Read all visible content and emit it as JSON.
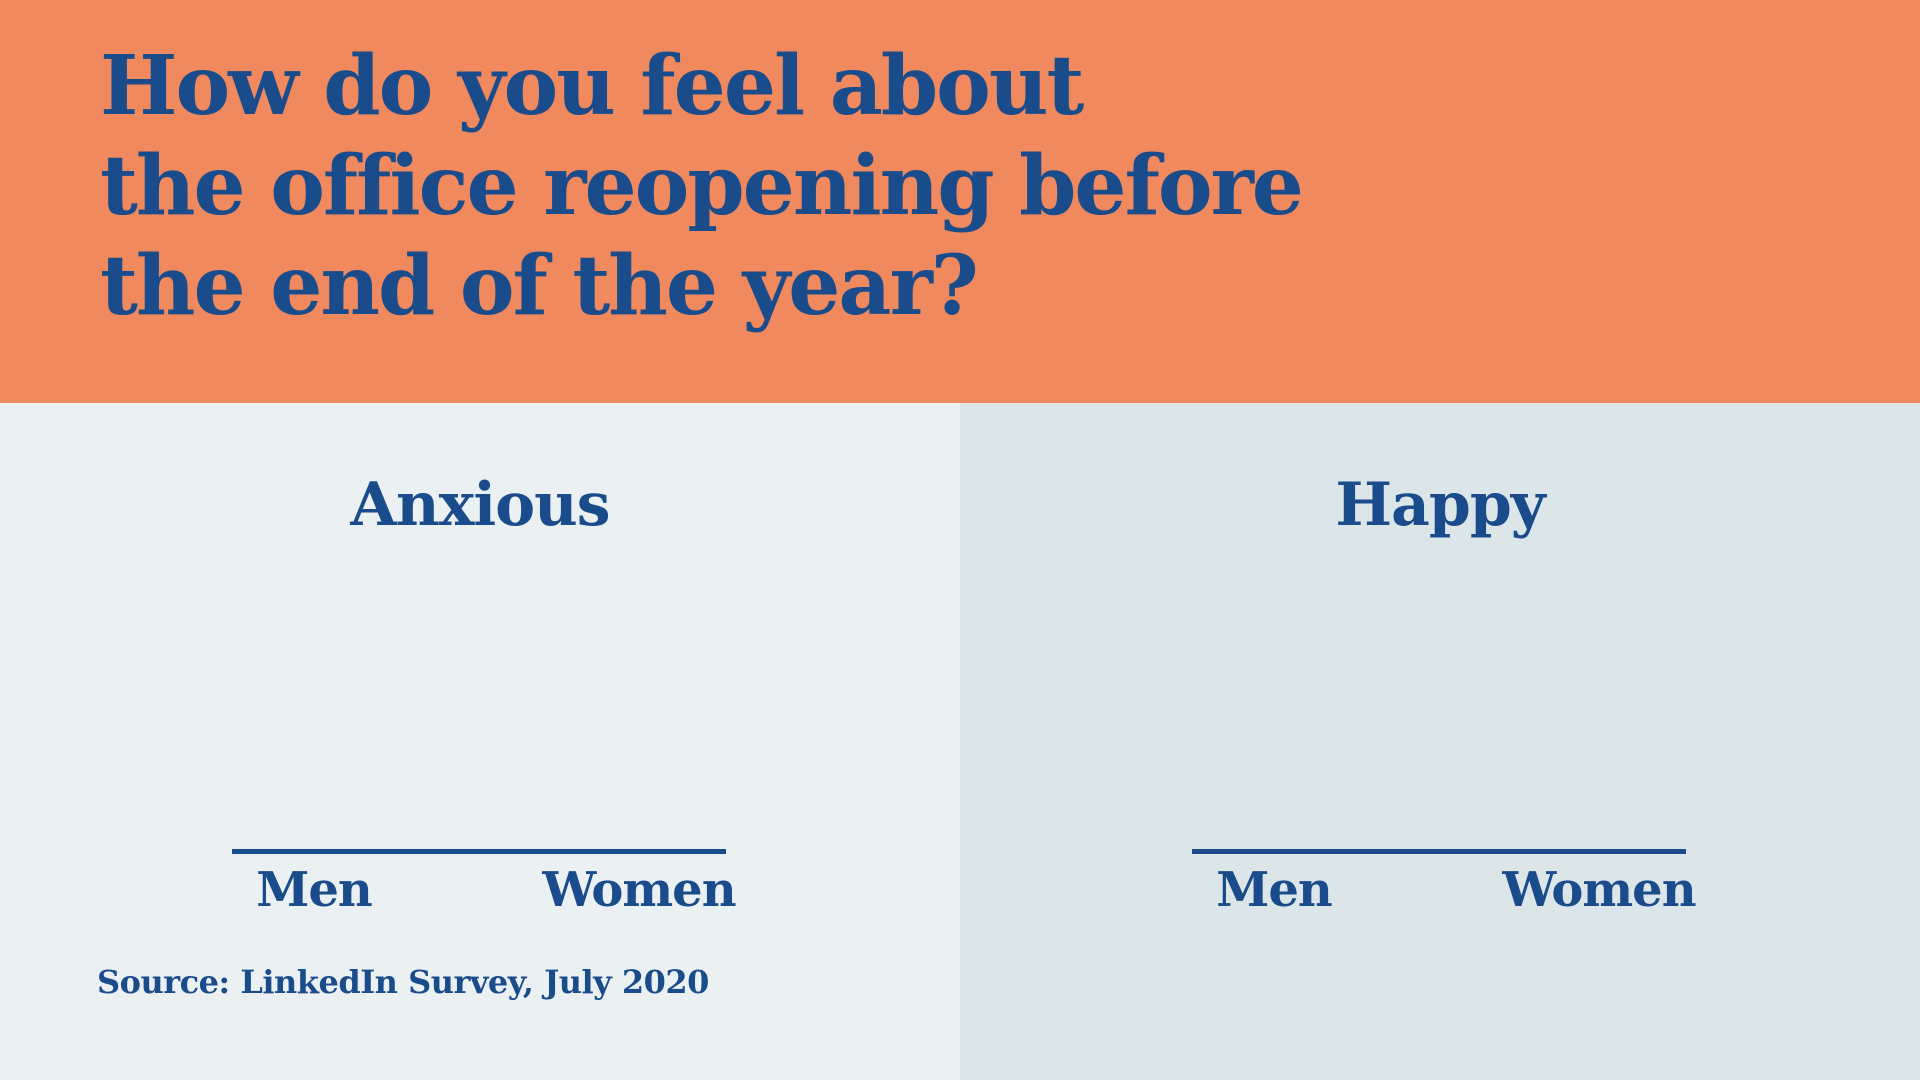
{
  "title": {
    "line1": "How do you feel about",
    "line2": "the office reopening before",
    "line3": "the end of the year?"
  },
  "panels": [
    {
      "heading": "Anxious",
      "categories": {
        "men": "Men",
        "women": "Women"
      }
    },
    {
      "heading": "Happy",
      "categories": {
        "men": "Men",
        "women": "Women"
      }
    }
  ],
  "source": "Source: LinkedIn Survey, July 2020",
  "colors": {
    "header_bg": "#F08A5E",
    "panel_left_bg": "#EBF0F3",
    "panel_right_bg": "#DCE6E9",
    "text_blue": "#1A4C8B",
    "axis_blue": "#1A4C8B"
  },
  "chart_data": [
    {
      "type": "bar",
      "title": "Anxious",
      "categories": [
        "Men",
        "Women"
      ],
      "values": [],
      "note": "no bars or numeric values are rendered in this frame; only the baseline axis and category labels are visible"
    },
    {
      "type": "bar",
      "title": "Happy",
      "categories": [
        "Men",
        "Women"
      ],
      "values": [],
      "note": "no bars or numeric values are rendered in this frame; only the baseline axis and category labels are visible"
    }
  ]
}
